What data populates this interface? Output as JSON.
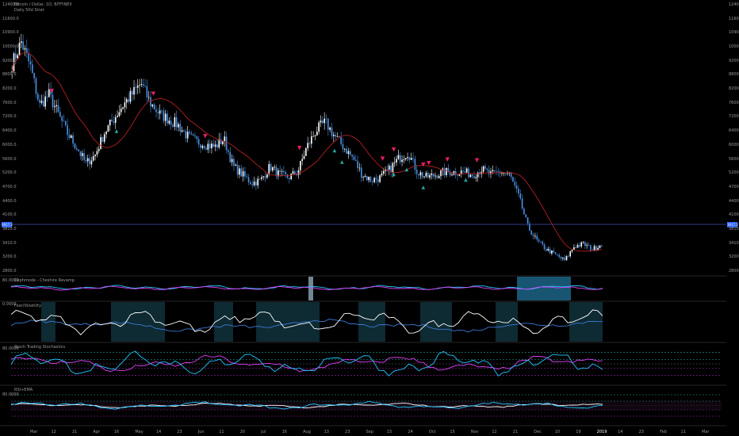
{
  "symbol_title": "Bitcoin / Dollar, 1D, BITFINEX",
  "overlay_title": "Daily 50d Strat",
  "last_price": "3917.2",
  "panels": [
    {
      "title": "Cephmode - Cheshire Revamp",
      "top_value": "80.0000"
    },
    {
      "title": "Fear/Volatility",
      "top_value": "0.0000"
    },
    {
      "title": "Stoch Trading Stochastics",
      "top_value": "80.0000"
    },
    {
      "title": "RSI+EMA",
      "top_value": "80.0000"
    }
  ],
  "colors": {
    "background": "#000000",
    "up_candle": "#ffffff",
    "down_candle": "#4a90e2",
    "sma": "#b22222",
    "marker_sell": "#e91e63",
    "marker_buy": "#26a69a",
    "price_line": "#3f51b5",
    "osc_cyan": "#21c7ff",
    "osc_magenta": "#e040fb"
  },
  "chart_data": [
    {
      "type": "candlestick",
      "title": "Bitcoin / Dollar, 1D, BITFINEX",
      "y_axis": [
        "12400.0",
        "11600.0",
        "10900.0",
        "10000.0",
        "9200.0",
        "8800.0",
        "8200.0",
        "7600.0",
        "7200.0",
        "6400.0",
        "6000.0",
        "5600.0",
        "5200.0",
        "4700.0",
        "4400.0",
        "4100.0",
        "3810.0",
        "3410.0",
        "3200.0",
        "2800.0"
      ],
      "x_axis": [
        "Mar",
        "12",
        "21",
        "Apr",
        "16",
        "May",
        "14",
        "23",
        "Jun",
        "11",
        "20",
        "Jul",
        "16",
        "Aug",
        "13",
        "23",
        "Sep",
        "15",
        "24",
        "Oct",
        "15",
        "Nov",
        "12",
        "21",
        "Dec",
        "10",
        "19",
        "2019",
        "14",
        "23",
        "Feb",
        "11",
        "Mar"
      ],
      "ylim": [
        2800,
        12600
      ],
      "close_path": [
        10400,
        11200,
        10300,
        8900,
        9300,
        8600,
        7900,
        7400,
        6800,
        7100,
        7900,
        8400,
        8900,
        9300,
        9700,
        9000,
        8600,
        8400,
        8200,
        7800,
        7600,
        7500,
        7400,
        7700,
        6700,
        6400,
        6100,
        6200,
        6700,
        6400,
        6300,
        6500,
        7400,
        8000,
        8300,
        7800,
        7400,
        7000,
        6400,
        6200,
        6300,
        6600,
        7000,
        7200,
        6500,
        6300,
        6400,
        6500,
        6500,
        6500,
        6400,
        6600,
        6400,
        6500,
        6400,
        5600,
        4500,
        4000,
        3700,
        3500,
        3300,
        3800,
        3900,
        3700,
        3900
      ],
      "candle_count": 320,
      "sma_period": 50,
      "sell_markers": [
        0.07,
        0.24,
        0.33,
        0.49,
        0.63,
        0.65,
        0.7,
        0.71,
        0.74,
        0.79
      ],
      "buy_markers": [
        0.18,
        0.55,
        0.56,
        0.65,
        0.67,
        0.7,
        0.77
      ]
    },
    {
      "type": "area",
      "title": "Cephmode - Cheshire Revamp",
      "ylim": [
        0,
        100
      ],
      "series": [
        "cyan",
        "magenta"
      ]
    },
    {
      "type": "line",
      "title": "Fear/Volatility",
      "series": [
        "white",
        "steelblue"
      ]
    },
    {
      "type": "line",
      "title": "Stoch Trading Stochastics",
      "ylim": [
        0,
        100
      ],
      "series": [
        "cyan",
        "magenta"
      ]
    },
    {
      "type": "line",
      "title": "RSI+EMA",
      "ylim": [
        0,
        100
      ],
      "series": [
        "cyan",
        "white"
      ]
    }
  ]
}
